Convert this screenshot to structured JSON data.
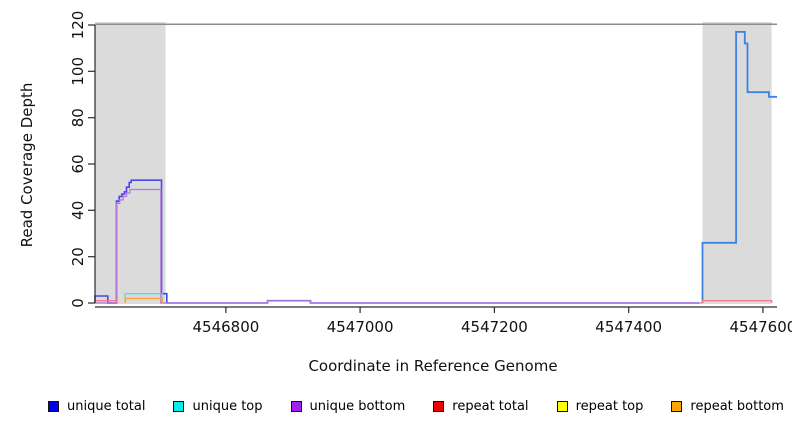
{
  "figure": {
    "xlabel": "Coordinate in Reference Genome",
    "ylabel": "Read Coverage Depth"
  },
  "chart_data": {
    "type": "line",
    "subtype": "step-coverage-depth",
    "title": "",
    "xlabel": "Coordinate in Reference Genome",
    "ylabel": "Read Coverage Depth",
    "xlim": [
      4546605,
      4547621
    ],
    "ylim": [
      0,
      120
    ],
    "x_ticks": [
      4546800,
      4547000,
      4547200,
      4547400,
      4547600
    ],
    "y_ticks": [
      0,
      20,
      40,
      60,
      80,
      100,
      120
    ],
    "grid": false,
    "legend_position": "bottom",
    "top_reference_line": {
      "y": 120.3,
      "color": "#8C8C8C"
    },
    "shaded_regions": [
      {
        "name": "repeat-region-left",
        "x0": 4546605,
        "x1": 4546710,
        "color": "#DBDBDB"
      },
      {
        "name": "repeat-region-right",
        "x0": 4547510,
        "x1": 4547613,
        "color": "#DBDBDB"
      }
    ],
    "series": [
      {
        "name": "unique total",
        "legend_color": "#0000EE",
        "line_color": "#4747EA",
        "line_color_after_split": "#3D82E2",
        "color_split_x": 4547505,
        "steps": [
          [
            4546605,
            3
          ],
          [
            4546624,
            0
          ],
          [
            4546637,
            44
          ],
          [
            4546641,
            46
          ],
          [
            4546645,
            47
          ],
          [
            4546649,
            48
          ],
          [
            4546652,
            50
          ],
          [
            4546656,
            52
          ],
          [
            4546659,
            53
          ],
          [
            4546704,
            4
          ],
          [
            4546712,
            0
          ],
          [
            4546862,
            1
          ],
          [
            4546926,
            0
          ],
          [
            4547510,
            26
          ],
          [
            4547560,
            117
          ],
          [
            4547573,
            112
          ],
          [
            4547577,
            91
          ],
          [
            4547609,
            89
          ],
          [
            4547621,
            89
          ]
        ]
      },
      {
        "name": "unique top",
        "legend_color": "#00EEEE",
        "line_color": "#5ADCE8",
        "spans": [
          [
            [
              4546650,
              4
            ],
            [
              4546705,
              0
            ]
          ]
        ]
      },
      {
        "name": "unique bottom",
        "legend_color": "#A020F0",
        "line_color": "#B278DE",
        "steps": [
          [
            4546605,
            0
          ],
          [
            4546637,
            43
          ],
          [
            4546642,
            44.5
          ],
          [
            4546647,
            46
          ],
          [
            4546652,
            47.5
          ],
          [
            4546657,
            49
          ],
          [
            4546703,
            0
          ],
          [
            4546862,
            1
          ],
          [
            4546926,
            0
          ],
          [
            4547510,
            0
          ]
        ]
      },
      {
        "name": "repeat total",
        "legend_color": "#EE0000",
        "line_color": "#F07F8E",
        "spans": [
          [
            [
              4546605,
              1
            ],
            [
              4546637,
              0
            ]
          ],
          [
            [
              4547510,
              1
            ],
            [
              4547613,
              0
            ]
          ]
        ]
      },
      {
        "name": "repeat top",
        "legend_color": "#FFFF00",
        "line_color": "#F2E53C",
        "spans": []
      },
      {
        "name": "repeat bottom",
        "legend_color": "#FFA500",
        "line_color": "#FFA03C",
        "spans": [
          [
            [
              4546650,
              2
            ],
            [
              4546705,
              0
            ]
          ]
        ]
      }
    ]
  }
}
